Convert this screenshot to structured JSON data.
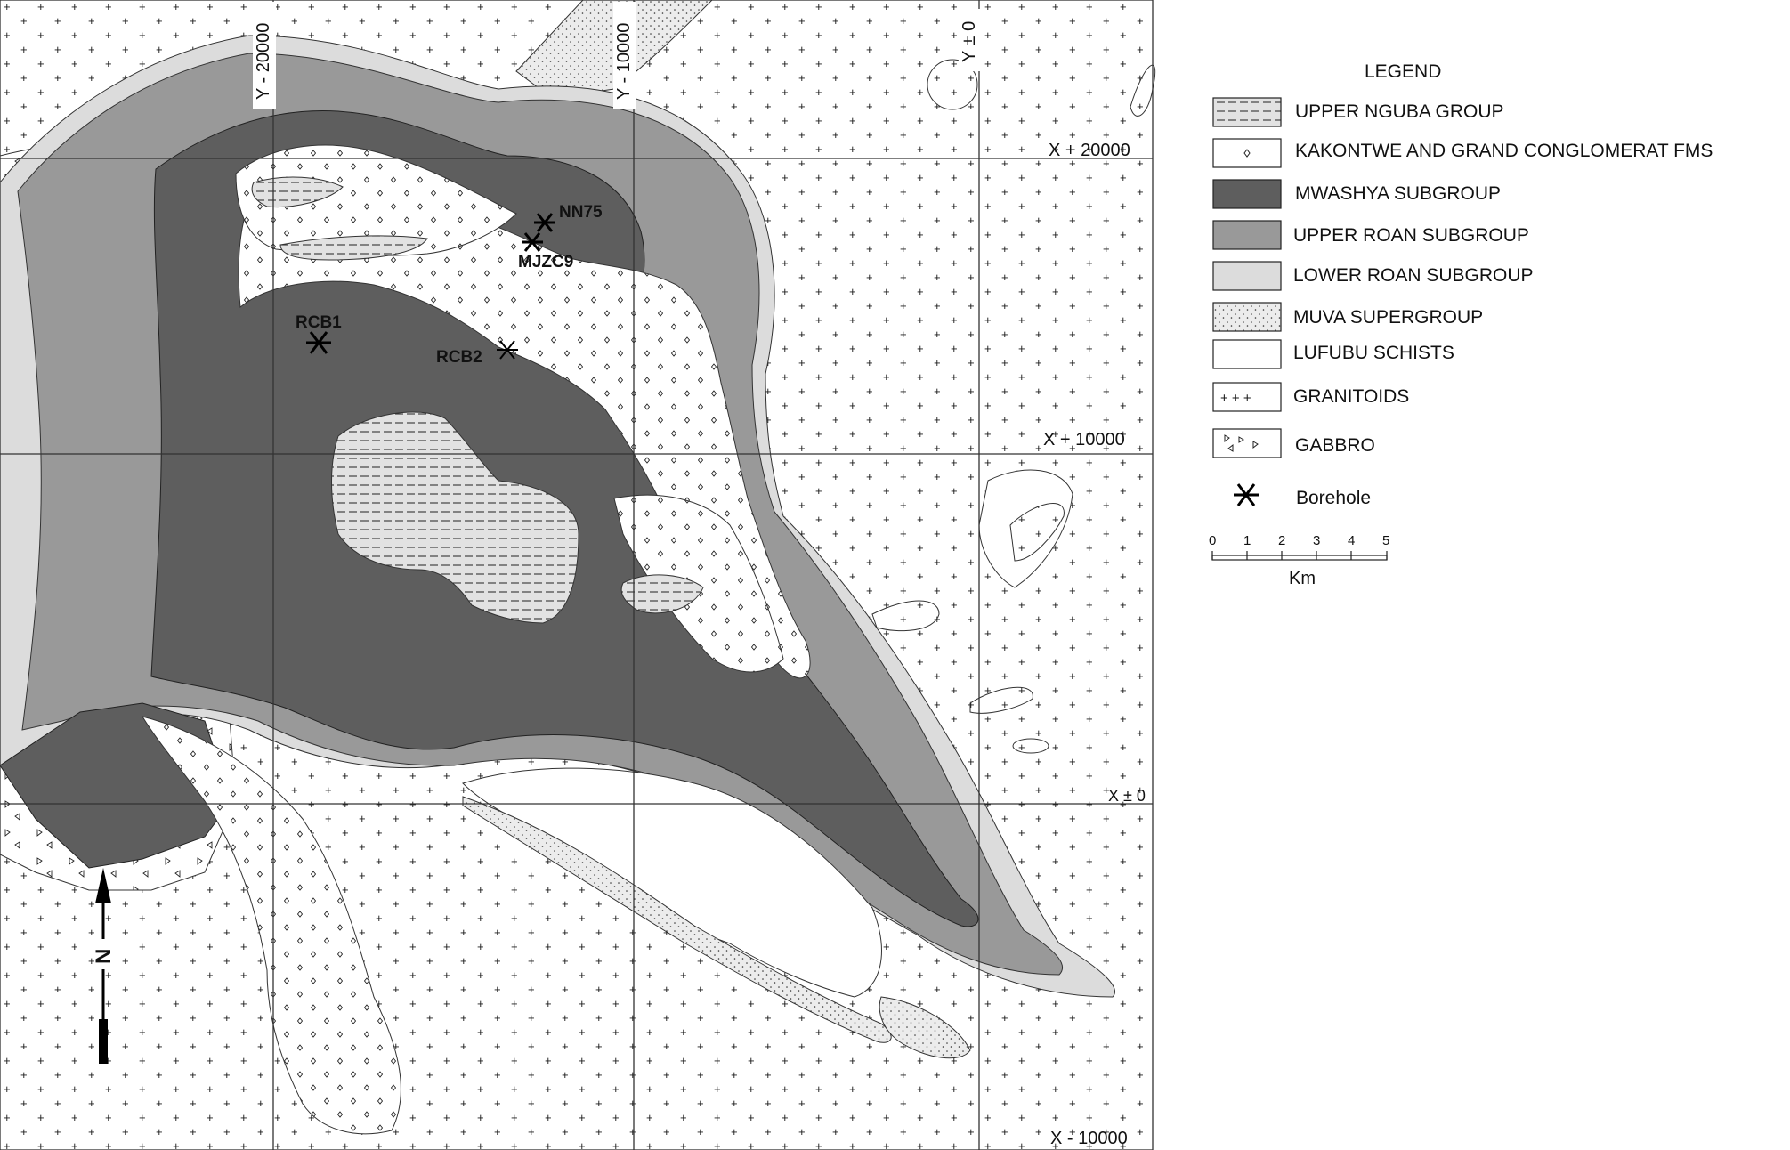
{
  "grid_labels": {
    "y_minus_20000": "Y - 20000",
    "y_minus_10000": "Y - 10000",
    "y_zero": "Y ± 0",
    "x_plus_20000": "X + 20000",
    "x_plus_10000": "X + 10000",
    "x_zero": "X ± 0",
    "x_minus_10000": "X - 10000"
  },
  "boreholes": {
    "nn75": "NN75",
    "mjzc9": "MJZC9",
    "rcb1": "RCB1",
    "rcb2": "RCB2"
  },
  "north_arrow": {
    "label": "N"
  },
  "legend": {
    "title": "LEGEND",
    "items": [
      {
        "label": "UPPER NGUBA GROUP",
        "pattern": "dash-fill"
      },
      {
        "label": "KAKONTWE AND GRAND CONGLOMERAT FMS",
        "pattern": "diamond-dots"
      },
      {
        "label": "MWASHYA SUBGROUP",
        "color": "#5e5e5e"
      },
      {
        "label": "UPPER ROAN SUBGROUP",
        "color": "#999999"
      },
      {
        "label": "LOWER ROAN SUBGROUP",
        "color": "#dcdcdc"
      },
      {
        "label": "MUVA SUPERGROUP",
        "pattern": "stipple"
      },
      {
        "label": "LUFUBU SCHISTS",
        "color": "#ffffff"
      },
      {
        "label": "GRANITOIDS",
        "pattern": "plus-signs"
      },
      {
        "label": "GABBRO",
        "pattern": "triangles"
      }
    ],
    "borehole_label": "Borehole",
    "scale_ticks": [
      "0",
      "1",
      "2",
      "3",
      "4",
      "5"
    ],
    "scale_unit": "Km"
  }
}
